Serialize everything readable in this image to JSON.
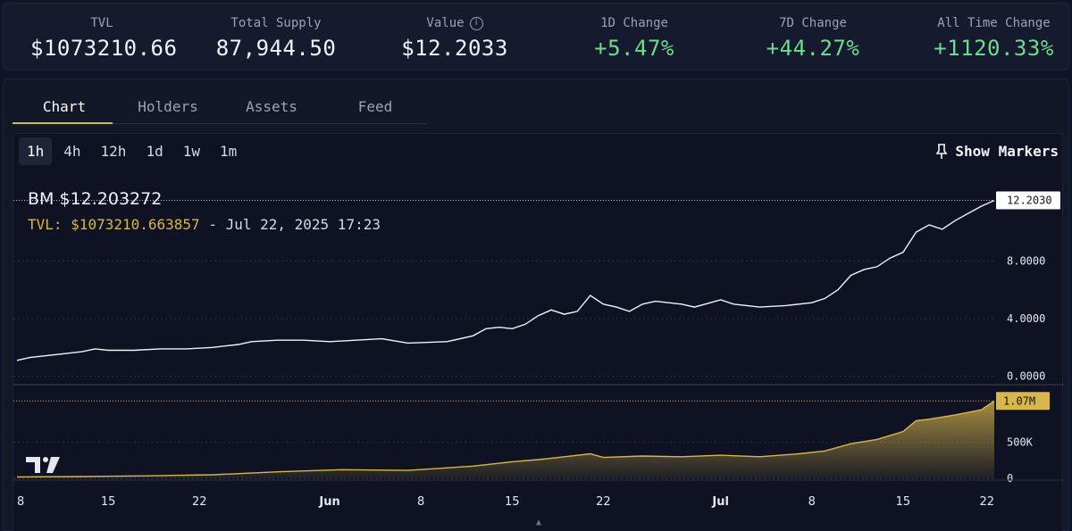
{
  "stats": [
    {
      "label": "TVL",
      "value": "$1073210.66",
      "positive": false,
      "info": false
    },
    {
      "label": "Total Supply",
      "value": "87,944.50",
      "positive": false,
      "info": false
    },
    {
      "label": "Value",
      "value": "$12.2033",
      "positive": false,
      "info": true
    },
    {
      "label": "1D Change",
      "value": "+5.47%",
      "positive": true,
      "info": false
    },
    {
      "label": "7D Change",
      "value": "+44.27%",
      "positive": true,
      "info": false
    },
    {
      "label": "All Time Change",
      "value": "+1120.33%",
      "positive": true,
      "info": false
    }
  ],
  "tabs": [
    "Chart",
    "Holders",
    "Assets",
    "Feed"
  ],
  "active_tab": "Chart",
  "ranges": [
    "1h",
    "4h",
    "12h",
    "1d",
    "1w",
    "1m"
  ],
  "active_range": "1h",
  "markers_label": "Show Markers",
  "legend": {
    "symbol": "BM",
    "price": "$12.203272",
    "tvl_label": "TVL:",
    "tvl_value": "$1073210.663857",
    "date": "- Jul 22, 2025 17:23"
  },
  "chart_data": {
    "type": "line",
    "price_axis": {
      "ticks": [
        "0.0000",
        "4.0000",
        "8.0000"
      ],
      "tick_values": [
        0,
        4,
        8
      ],
      "ylim": [
        -0.4,
        13.6
      ],
      "last_label": "12.2030",
      "last_value": 12.203
    },
    "tvl_axis": {
      "ticks": [
        "0",
        "500K"
      ],
      "tick_values": [
        0,
        500000
      ],
      "ylim": [
        0,
        1250000
      ],
      "last_label": "1.07M",
      "last_value": 1073210
    },
    "x_ticks": [
      "8",
      "15",
      "22",
      "Jun",
      "8",
      "15",
      "22",
      "Jul",
      "8",
      "15",
      "22"
    ],
    "x_tick_days": [
      0,
      7,
      14,
      24,
      31,
      38,
      45,
      54,
      61,
      68,
      75
    ],
    "x_range_days": [
      0,
      75
    ],
    "colors": {
      "price_line": "#f2f3f7",
      "tvl_line": "#d9b64a",
      "tvl_fill": "#d9b64a",
      "grid": "#2a3046"
    },
    "price_series": [
      [
        0,
        1.1
      ],
      [
        1,
        1.3
      ],
      [
        3,
        1.5
      ],
      [
        5,
        1.7
      ],
      [
        6,
        1.9
      ],
      [
        7,
        1.8
      ],
      [
        9,
        1.8
      ],
      [
        11,
        1.9
      ],
      [
        13,
        1.9
      ],
      [
        15,
        2.0
      ],
      [
        17,
        2.2
      ],
      [
        18,
        2.4
      ],
      [
        20,
        2.5
      ],
      [
        22,
        2.5
      ],
      [
        24,
        2.4
      ],
      [
        26,
        2.5
      ],
      [
        28,
        2.6
      ],
      [
        30,
        2.3
      ],
      [
        33,
        2.4
      ],
      [
        35,
        2.8
      ],
      [
        36,
        3.3
      ],
      [
        37,
        3.4
      ],
      [
        38,
        3.3
      ],
      [
        39,
        3.6
      ],
      [
        40,
        4.2
      ],
      [
        41,
        4.6
      ],
      [
        42,
        4.3
      ],
      [
        43,
        4.5
      ],
      [
        44,
        5.6
      ],
      [
        45,
        5.0
      ],
      [
        46,
        4.8
      ],
      [
        47,
        4.5
      ],
      [
        48,
        5.0
      ],
      [
        49,
        5.2
      ],
      [
        51,
        5.0
      ],
      [
        52,
        4.8
      ],
      [
        54,
        5.3
      ],
      [
        55,
        5.0
      ],
      [
        57,
        4.8
      ],
      [
        59,
        4.9
      ],
      [
        61,
        5.1
      ],
      [
        62,
        5.4
      ],
      [
        63,
        6.0
      ],
      [
        64,
        7.0
      ],
      [
        65,
        7.4
      ],
      [
        66,
        7.6
      ],
      [
        67,
        8.2
      ],
      [
        68,
        8.6
      ],
      [
        69,
        10.0
      ],
      [
        70,
        10.5
      ],
      [
        71,
        10.2
      ],
      [
        72,
        10.8
      ],
      [
        73,
        11.3
      ],
      [
        74,
        11.8
      ],
      [
        75,
        12.2
      ]
    ],
    "tvl_series": [
      [
        0,
        20000
      ],
      [
        5,
        25000
      ],
      [
        10,
        35000
      ],
      [
        15,
        50000
      ],
      [
        20,
        90000
      ],
      [
        25,
        120000
      ],
      [
        30,
        110000
      ],
      [
        35,
        170000
      ],
      [
        38,
        230000
      ],
      [
        40,
        260000
      ],
      [
        41,
        280000
      ],
      [
        42,
        300000
      ],
      [
        44,
        340000
      ],
      [
        45,
        290000
      ],
      [
        48,
        310000
      ],
      [
        51,
        300000
      ],
      [
        54,
        320000
      ],
      [
        57,
        300000
      ],
      [
        60,
        340000
      ],
      [
        62,
        380000
      ],
      [
        64,
        480000
      ],
      [
        66,
        540000
      ],
      [
        68,
        650000
      ],
      [
        69,
        800000
      ],
      [
        70,
        820000
      ],
      [
        72,
        880000
      ],
      [
        74,
        950000
      ],
      [
        75,
        1073210
      ]
    ]
  }
}
